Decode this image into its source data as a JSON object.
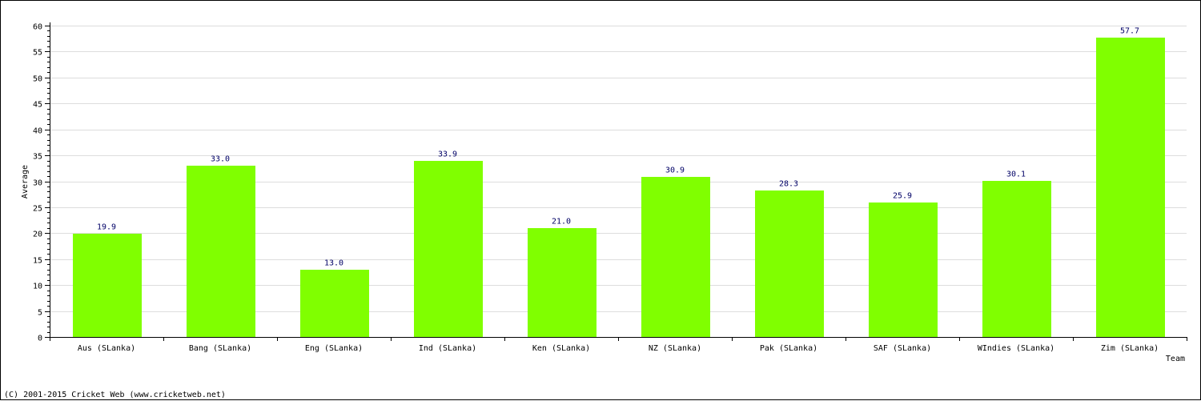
{
  "chart_data": {
    "type": "bar",
    "xlabel": "Team",
    "ylabel": "Average",
    "ylim": [
      0,
      60
    ],
    "ytick_step": 5,
    "grid": true,
    "categories": [
      "Aus (SLanka)",
      "Bang (SLanka)",
      "Eng (SLanka)",
      "Ind (SLanka)",
      "Ken (SLanka)",
      "NZ (SLanka)",
      "Pak (SLanka)",
      "SAF (SLanka)",
      "WIndies (SLanka)",
      "Zim (SLanka)"
    ],
    "values": [
      19.9,
      33.0,
      13.0,
      33.9,
      21.0,
      30.9,
      28.3,
      25.9,
      30.1,
      57.7
    ],
    "data_labels": [
      "19.9",
      "33.0",
      "13.0",
      "33.9",
      "21.0",
      "30.9",
      "28.3",
      "25.9",
      "30.1",
      "57.7"
    ],
    "colors": {
      "bar": "#80ff00",
      "grid": "#dddddd",
      "axis": "#000000",
      "label": "#000066"
    }
  },
  "footer": {
    "copyright": "(C) 2001-2015 Cricket Web (www.cricketweb.net)"
  }
}
